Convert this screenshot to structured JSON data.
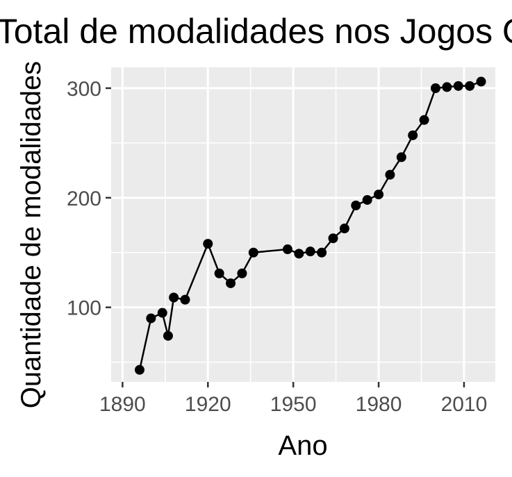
{
  "chart_data": {
    "type": "line",
    "title": "Total de modalidades nos Jogos Olímpicos",
    "xlabel": "Ano",
    "ylabel": "Quantidade de modalidades",
    "xlim": [
      1886,
      2021
    ],
    "ylim": [
      32,
      319
    ],
    "x_ticks": [
      1890,
      1920,
      1950,
      1980,
      2010
    ],
    "y_ticks": [
      100,
      200,
      300
    ],
    "grid": true,
    "legend": "none",
    "colors": {
      "panel": "#ebebeb",
      "grid": "#ffffff",
      "series": "#000000",
      "tick_text": "#4d4d4d"
    },
    "series": [
      {
        "x": [
          1896,
          1900,
          1904,
          1906,
          1908,
          1912,
          1920,
          1924,
          1928,
          1932,
          1936,
          1948,
          1952,
          1956,
          1960,
          1964,
          1968,
          1972,
          1976,
          1980,
          1984,
          1988,
          1992,
          1996,
          2000,
          2004,
          2008,
          2012,
          2016
        ],
        "y": [
          43,
          90,
          95,
          74,
          109,
          107,
          158,
          131,
          122,
          131,
          150,
          153,
          149,
          151,
          150,
          163,
          172,
          193,
          198,
          203,
          221,
          237,
          257,
          271,
          300,
          301,
          302,
          302,
          306
        ]
      }
    ]
  }
}
